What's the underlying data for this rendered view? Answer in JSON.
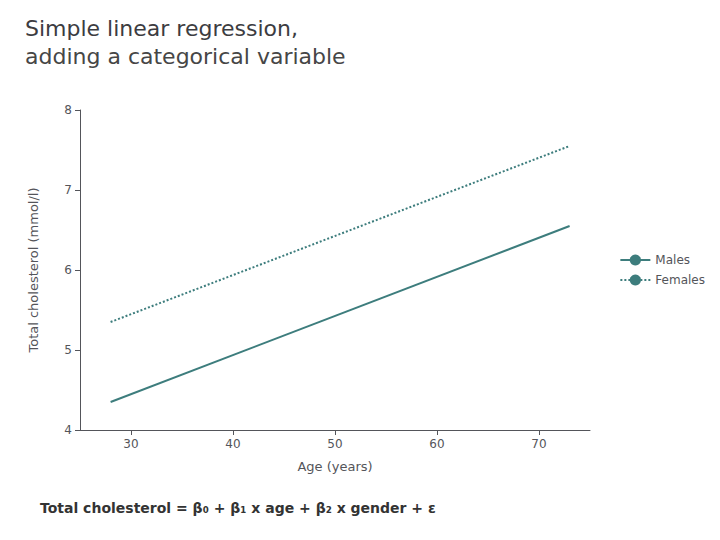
{
  "chart_data": {
    "type": "line",
    "title": "Simple linear regression,",
    "subtitle": "adding a categorical variable",
    "x_label": "Age (years)",
    "y_label": "Total cholesterol (mmol/l)",
    "x": [
      28,
      73
    ],
    "series": [
      {
        "name": "Males",
        "color": "#3d7d7d",
        "line_style": "solid",
        "values": [
          4.35,
          6.55
        ]
      },
      {
        "name": "Females",
        "color": "#3d7d7d",
        "line_style": "dotted",
        "values": [
          5.35,
          7.55
        ]
      }
    ],
    "xlim": [
      25,
      75
    ],
    "ylim": [
      4,
      8
    ],
    "xticks": [
      30,
      40,
      50,
      60,
      70
    ],
    "yticks": [
      4,
      5,
      6,
      7,
      8
    ],
    "grid": false,
    "legend": "right",
    "marker": "none",
    "annotations": [
      "Total cholesterol = β₀ + β₁ x age + β₂ x gender + ε"
    ]
  }
}
